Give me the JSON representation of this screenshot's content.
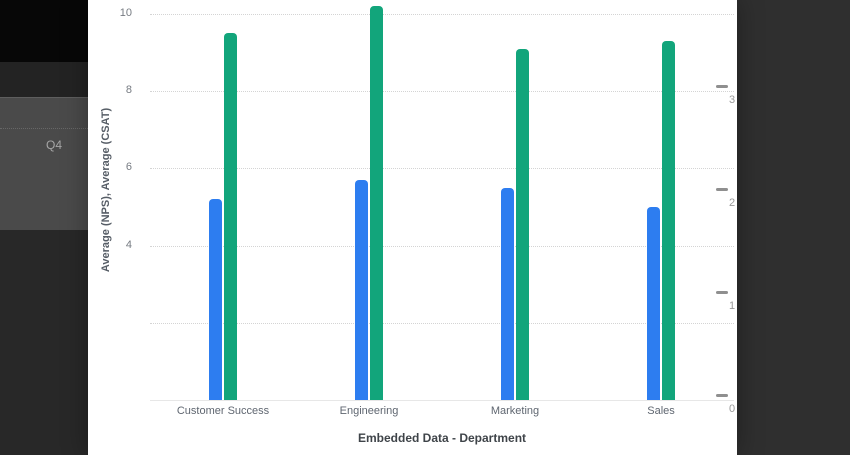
{
  "background": {
    "q4_label": "Q4"
  },
  "chart_data": {
    "type": "bar",
    "title": "",
    "xlabel": "Embedded Data - Department",
    "ylabel": "Average (NPS), Average (CSAT)",
    "categories": [
      "Customer Success",
      "Engineering",
      "Marketing",
      "Sales"
    ],
    "series": [
      {
        "name": "Average (NPS)",
        "color": "#2d7df0",
        "values": [
          5.2,
          5.7,
          5.5,
          5.0
        ]
      },
      {
        "name": "Average (CSAT)",
        "color": "#12a57b",
        "values": [
          9.5,
          10.2,
          9.1,
          9.3
        ]
      }
    ],
    "ylim": [
      0,
      10.3
    ],
    "yticks_left": [
      10,
      8,
      6,
      4
    ],
    "gridline_values": [
      10,
      8,
      6,
      4,
      2
    ],
    "yticks_right": [
      3,
      2,
      1,
      0
    ],
    "grid": "dotted-horizontal",
    "legend": "none"
  }
}
